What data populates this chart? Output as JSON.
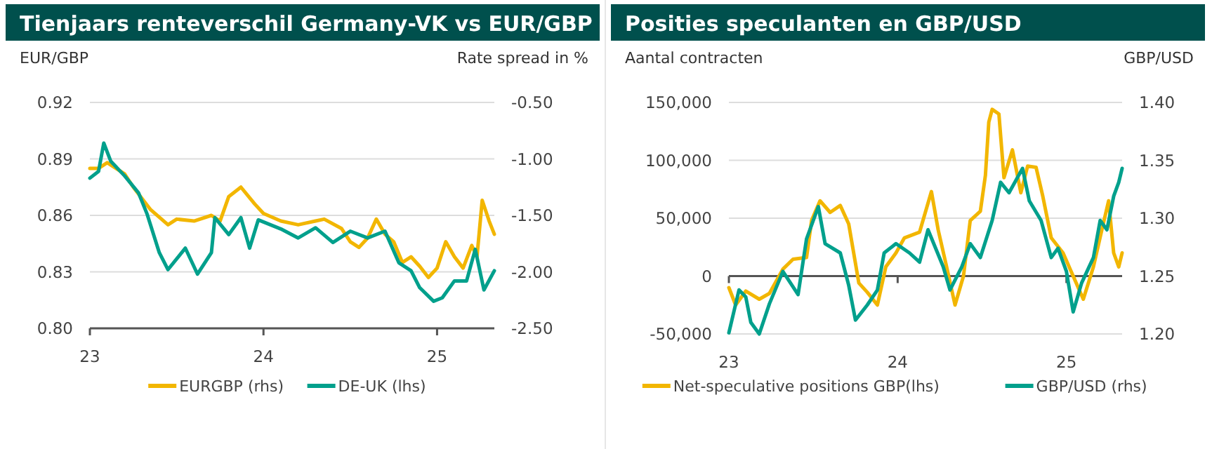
{
  "chart_data": [
    {
      "type": "line",
      "title": "Tienjaars renteverschil Germany-VK vs EUR/GBP",
      "ylabel": "EUR/GBP",
      "y2label": "Rate spread in %",
      "xlim": [
        23,
        25.33
      ],
      "xticks": [
        23,
        24,
        25
      ],
      "ylim": [
        0.8,
        0.92
      ],
      "yticks": [
        {
          "value": 0.8,
          "label": "0.80"
        },
        0.83,
        0.86,
        0.89,
        0.92
      ],
      "y2lim": [
        -2.5,
        -0.5
      ],
      "y2ticks": [
        {
          "value": -2.5,
          "label": "-2.50"
        },
        {
          "value": -2,
          "label": "-2.00"
        },
        {
          "value": -1.5,
          "label": "-1.50"
        },
        {
          "value": -1,
          "label": "-1.00"
        },
        {
          "value": -0.5,
          "label": "-0.50"
        }
      ],
      "grid": "y",
      "legend": "bottom",
      "marker": "none",
      "line_style": "solid",
      "series": [
        {
          "name": "EURGBP (rhs)",
          "color": "#f2b600",
          "x": [
            23,
            23.05,
            23.1,
            23.2,
            23.25,
            23.35,
            23.45,
            23.5,
            23.6,
            23.7,
            23.75,
            23.8,
            23.87,
            23.95,
            24,
            24.1,
            24.2,
            24.3,
            24.35,
            24.45,
            24.5,
            24.55,
            24.6,
            24.65,
            24.7,
            24.75,
            24.8,
            24.85,
            24.9,
            24.95,
            25,
            25.05,
            25.1,
            25.15,
            25.2,
            25.23,
            25.26,
            25.3,
            25.33
          ],
          "values": [
            0.885,
            0.885,
            0.888,
            0.882,
            0.875,
            0.863,
            0.855,
            0.858,
            0.857,
            0.86,
            0.857,
            0.87,
            0.875,
            0.866,
            0.861,
            0.857,
            0.855,
            0.857,
            0.858,
            0.853,
            0.846,
            0.843,
            0.848,
            0.858,
            0.85,
            0.846,
            0.835,
            0.838,
            0.833,
            0.827,
            0.832,
            0.846,
            0.838,
            0.832,
            0.844,
            0.838,
            0.868,
            0.857,
            0.85
          ]
        },
        {
          "name": "DE-UK (lhs)",
          "color": "#00a08c",
          "axis": "y2",
          "x": [
            23,
            23.05,
            23.08,
            23.12,
            23.2,
            23.28,
            23.33,
            23.4,
            23.45,
            23.55,
            23.62,
            23.7,
            23.72,
            23.8,
            23.87,
            23.92,
            23.97,
            24.1,
            24.2,
            24.3,
            24.4,
            24.5,
            24.6,
            24.7,
            24.78,
            24.85,
            24.9,
            24.98,
            25.03,
            25.1,
            25.17,
            25.22,
            25.27,
            25.33
          ],
          "values": [
            -1.17,
            -1.11,
            -0.86,
            -1.02,
            -1.15,
            -1.3,
            -1.49,
            -1.83,
            -1.98,
            -1.79,
            -2.02,
            -1.83,
            -1.52,
            -1.67,
            -1.52,
            -1.79,
            -1.54,
            -1.62,
            -1.7,
            -1.61,
            -1.74,
            -1.64,
            -1.7,
            -1.64,
            -1.92,
            -1.99,
            -2.14,
            -2.26,
            -2.23,
            -2.08,
            -2.08,
            -1.8,
            -2.16,
            -1.99
          ]
        }
      ]
    },
    {
      "type": "line",
      "title": "Posities speculanten en GBP/USD",
      "ylabel": "Aantal contracten",
      "y2label": "GBP/USD",
      "xlim": [
        23,
        25.33
      ],
      "xticks": [
        23,
        24,
        25
      ],
      "ylim": [
        -50000,
        150000
      ],
      "yticks": [
        {
          "value": -50000,
          "label": "-50,000"
        },
        0,
        {
          "value": 50000,
          "label": "50,000"
        },
        {
          "value": 100000,
          "label": "100,000"
        },
        {
          "value": 150000,
          "label": "150,000"
        }
      ],
      "y2lim": [
        1.2,
        1.4
      ],
      "y2ticks": [
        {
          "value": 1.2,
          "label": "1.20"
        },
        1.25,
        {
          "value": 1.3,
          "label": "1.30"
        },
        1.35,
        {
          "value": 1.4,
          "label": "1.40"
        }
      ],
      "grid": "y",
      "legend": "bottom",
      "marker": "none",
      "line_style": "solid",
      "series": [
        {
          "name": "Net-speculative positions GBP(lhs)",
          "color": "#f2b600",
          "x": [
            23,
            23.04,
            23.1,
            23.18,
            23.24,
            23.32,
            23.38,
            23.46,
            23.49,
            23.54,
            23.6,
            23.66,
            23.71,
            23.77,
            23.82,
            23.88,
            23.93,
            23.99,
            24.04,
            24.13,
            24.2,
            24.24,
            24.29,
            24.34,
            24.39,
            24.43,
            24.49,
            24.52,
            24.54,
            24.56,
            24.6,
            24.63,
            24.68,
            24.73,
            24.77,
            24.82,
            24.86,
            24.91,
            24.98,
            25.04,
            25.1,
            25.16,
            25.21,
            25.25,
            25.28,
            25.31,
            25.33
          ],
          "values": [
            -10000,
            -25000,
            -13000,
            -20000,
            -15000,
            6000,
            14500,
            16000,
            48000,
            65000,
            55000,
            61000,
            45000,
            -6000,
            -14000,
            -25000,
            8000,
            20000,
            33000,
            38000,
            73000,
            40000,
            8000,
            -25000,
            0,
            48000,
            56000,
            87000,
            133000,
            144000,
            140000,
            85000,
            109000,
            72000,
            95000,
            94000,
            69000,
            33000,
            20000,
            0,
            -20000,
            8000,
            40000,
            65000,
            20000,
            8000,
            20000
          ]
        },
        {
          "name": "GBP/USD (rhs)",
          "color": "#00a08c",
          "axis": "y2",
          "x": [
            23,
            23.06,
            23.1,
            23.13,
            23.18,
            23.24,
            23.32,
            23.41,
            23.46,
            23.53,
            23.57,
            23.66,
            23.71,
            23.75,
            23.82,
            23.88,
            23.92,
            23.99,
            24.07,
            24.13,
            24.18,
            24.27,
            24.31,
            24.38,
            24.43,
            24.49,
            24.56,
            24.61,
            24.66,
            24.74,
            24.78,
            24.85,
            24.91,
            24.95,
            25,
            25.04,
            25.09,
            25.16,
            25.2,
            25.24,
            25.28,
            25.31,
            25.33
          ],
          "values": [
            1.201,
            1.238,
            1.232,
            1.21,
            1.2,
            1.226,
            1.254,
            1.234,
            1.282,
            1.31,
            1.278,
            1.27,
            1.242,
            1.212,
            1.225,
            1.238,
            1.27,
            1.278,
            1.27,
            1.262,
            1.29,
            1.258,
            1.238,
            1.258,
            1.278,
            1.266,
            1.298,
            1.331,
            1.322,
            1.343,
            1.315,
            1.298,
            1.266,
            1.274,
            1.254,
            1.219,
            1.244,
            1.266,
            1.298,
            1.29,
            1.319,
            1.331,
            1.343
          ]
        }
      ]
    }
  ]
}
